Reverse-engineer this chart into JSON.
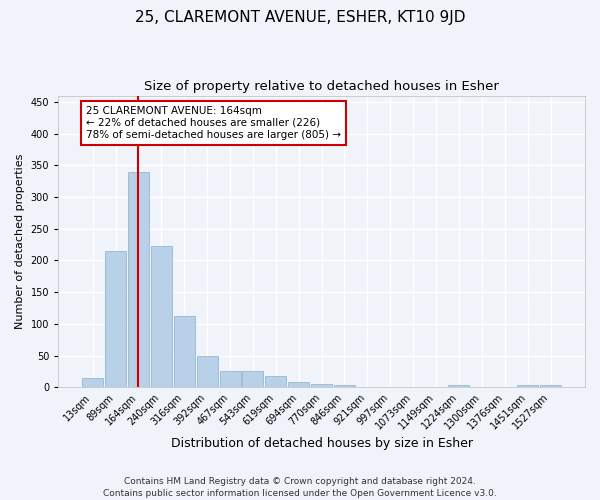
{
  "title": "25, CLAREMONT AVENUE, ESHER, KT10 9JD",
  "subtitle": "Size of property relative to detached houses in Esher",
  "xlabel": "Distribution of detached houses by size in Esher",
  "ylabel": "Number of detached properties",
  "categories": [
    "13sqm",
    "89sqm",
    "164sqm",
    "240sqm",
    "316sqm",
    "392sqm",
    "467sqm",
    "543sqm",
    "619sqm",
    "694sqm",
    "770sqm",
    "846sqm",
    "921sqm",
    "997sqm",
    "1073sqm",
    "1149sqm",
    "1224sqm",
    "1300sqm",
    "1376sqm",
    "1451sqm",
    "1527sqm"
  ],
  "values": [
    15,
    215,
    340,
    222,
    113,
    50,
    26,
    26,
    17,
    9,
    5,
    4,
    1,
    0,
    1,
    0,
    4,
    1,
    0,
    3,
    3
  ],
  "bar_color": "#b8d0e8",
  "bar_edge_color": "#8ab0cc",
  "vline_x_index": 2,
  "vline_color": "#cc0000",
  "annotation_line1": "25 CLAREMONT AVENUE: 164sqm",
  "annotation_line2": "← 22% of detached houses are smaller (226)",
  "annotation_line3": "78% of semi-detached houses are larger (805) →",
  "annotation_box_color": "#cc0000",
  "ylim": [
    0,
    460
  ],
  "yticks": [
    0,
    50,
    100,
    150,
    200,
    250,
    300,
    350,
    400,
    450
  ],
  "background_color": "#f0f4fa",
  "grid_color": "#ffffff",
  "title_fontsize": 11,
  "subtitle_fontsize": 9.5,
  "xlabel_fontsize": 9,
  "ylabel_fontsize": 8,
  "tick_fontsize": 7,
  "annotation_fontsize": 7.5,
  "footer_fontsize": 6.5,
  "footer_text": "Contains HM Land Registry data © Crown copyright and database right 2024.\nContains public sector information licensed under the Open Government Licence v3.0."
}
